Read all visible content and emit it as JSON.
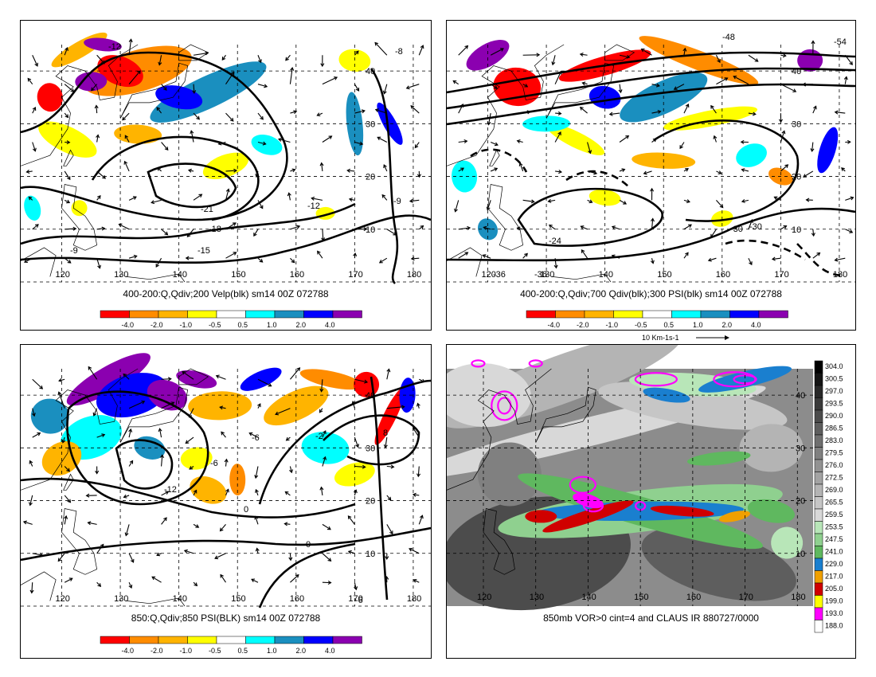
{
  "panels": [
    {
      "id": "upper-left",
      "caption": "400-200:Q,Qdiv;200 Velp(blk) sm14 00Z 072788",
      "lon_labels": [
        "120",
        "130",
        "140",
        "150",
        "160",
        "170",
        "180"
      ],
      "lat_labels": [
        "40",
        "30",
        "20",
        "10"
      ],
      "contour_labels": [
        "-12",
        "-21",
        "-18",
        "-15",
        "-12",
        "-9",
        "-9",
        "-8"
      ],
      "colorbar": [
        "-4.0",
        "-2.0",
        "-1.0",
        "-0.5",
        "0.5",
        "1.0",
        "2.0",
        "4.0"
      ]
    },
    {
      "id": "upper-right",
      "caption": "400-200:Q,Qdiv;700 Qdiv(blk);300 PSI(blk) sm14 00Z 072788",
      "lon_labels": [
        "120",
        "130",
        "140",
        "150",
        "160",
        "170",
        "180"
      ],
      "lat_labels": [
        "40",
        "30",
        "20",
        "10"
      ],
      "contour_labels": [
        "-48",
        "-54",
        "-30",
        "-24",
        "-30",
        "-36",
        "-36"
      ],
      "colorbar": [
        "-4.0",
        "-2.0",
        "-1.0",
        "-0.5",
        "0.5",
        "1.0",
        "2.0",
        "4.0"
      ],
      "vector_ref": "10 Km-1s-1"
    },
    {
      "id": "lower-left",
      "caption": "850:Q,Qdiv;850 PSI(BLK) sm14 00Z 072788",
      "lon_labels": [
        "120",
        "130",
        "140",
        "150",
        "160",
        "170",
        "180"
      ],
      "lat_labels": [
        "40",
        "30",
        "20",
        "10"
      ],
      "contour_labels": [
        "0",
        "-12",
        "-6",
        "-6",
        "-2",
        "0",
        "0",
        "-6",
        "8"
      ],
      "colorbar": [
        "-4.0",
        "-2.0",
        "-1.0",
        "-0.5",
        "0.5",
        "1.0",
        "2.0",
        "4.0"
      ]
    },
    {
      "id": "lower-right",
      "caption": "850mb VOR>0 cint=4 and CLAUS IR 880727/0000",
      "lon_labels": [
        "120",
        "130",
        "140",
        "150",
        "160",
        "170",
        "180"
      ],
      "lat_labels": [
        "40",
        "30",
        "20",
        "10"
      ],
      "ir_scale": [
        "304.0",
        "300.5",
        "297.0",
        "293.5",
        "290.0",
        "286.5",
        "283.0",
        "279.5",
        "276.0",
        "272.5",
        "269.0",
        "265.5",
        "259.5",
        "253.5",
        "247.5",
        "241.0",
        "229.0",
        "217.0",
        "205.0",
        "199.0",
        "193.0",
        "188.0"
      ]
    }
  ],
  "colors": {
    "q_scale": [
      "#ff0000",
      "#ff8c00",
      "#ffb400",
      "#ffff00",
      "#ffffff",
      "#00ffff",
      "#1a8fbf",
      "#0000ff",
      "#8b00b0"
    ],
    "ir_scale": [
      "#000000",
      "#141414",
      "#282828",
      "#3a3a3a",
      "#4c4c4c",
      "#5e5e5e",
      "#6f6f6f",
      "#808080",
      "#929292",
      "#a3a3a3",
      "#b4b4b4",
      "#c6c6c6",
      "#d8d8d8",
      "#b8e6b8",
      "#8fd08f",
      "#5fb85f",
      "#1a7fcf",
      "#f0a000",
      "#d00000",
      "#ffff00",
      "#ff00ff",
      "#ffffff"
    ],
    "vorticity": "#ff00ff"
  }
}
